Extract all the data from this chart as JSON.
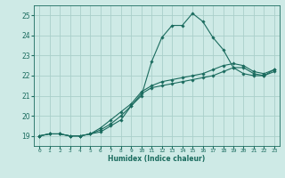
{
  "xlabel": "Humidex (Indice chaleur)",
  "ylabel": "",
  "xlim": [
    -0.5,
    23.5
  ],
  "ylim": [
    18.5,
    25.5
  ],
  "xticks": [
    0,
    1,
    2,
    3,
    4,
    5,
    6,
    7,
    8,
    9,
    10,
    11,
    12,
    13,
    14,
    15,
    16,
    17,
    18,
    19,
    20,
    21,
    22,
    23
  ],
  "yticks": [
    19,
    20,
    21,
    22,
    23,
    24,
    25
  ],
  "bg_color": "#ceeae6",
  "grid_color": "#aacfca",
  "line_color": "#1a6b5e",
  "lines": [
    {
      "x": [
        0,
        1,
        2,
        3,
        4,
        5,
        6,
        7,
        8,
        9,
        10,
        11,
        12,
        13,
        14,
        15,
        16,
        17,
        18,
        19,
        20,
        21,
        22,
        23
      ],
      "y": [
        19.0,
        19.1,
        19.1,
        19.0,
        19.0,
        19.1,
        19.2,
        19.5,
        19.8,
        20.5,
        21.0,
        22.7,
        23.9,
        24.5,
        24.5,
        25.1,
        24.7,
        23.9,
        23.3,
        22.4,
        22.1,
        22.0,
        22.0,
        22.2
      ]
    },
    {
      "x": [
        0,
        1,
        2,
        3,
        4,
        5,
        6,
        7,
        8,
        9,
        10,
        11,
        12,
        13,
        14,
        15,
        16,
        17,
        18,
        19,
        20,
        21,
        22,
        23
      ],
      "y": [
        19.0,
        19.1,
        19.1,
        19.0,
        19.0,
        19.1,
        19.3,
        19.6,
        20.0,
        20.5,
        21.1,
        21.4,
        21.5,
        21.6,
        21.7,
        21.8,
        21.9,
        22.0,
        22.2,
        22.4,
        22.4,
        22.1,
        22.0,
        22.3
      ]
    },
    {
      "x": [
        0,
        1,
        2,
        3,
        4,
        5,
        6,
        7,
        8,
        9,
        10,
        11,
        12,
        13,
        14,
        15,
        16,
        17,
        18,
        19,
        20,
        21,
        22,
        23
      ],
      "y": [
        19.0,
        19.1,
        19.1,
        19.0,
        19.0,
        19.1,
        19.4,
        19.8,
        20.2,
        20.6,
        21.2,
        21.5,
        21.7,
        21.8,
        21.9,
        22.0,
        22.1,
        22.3,
        22.5,
        22.6,
        22.5,
        22.2,
        22.1,
        22.3
      ]
    }
  ]
}
